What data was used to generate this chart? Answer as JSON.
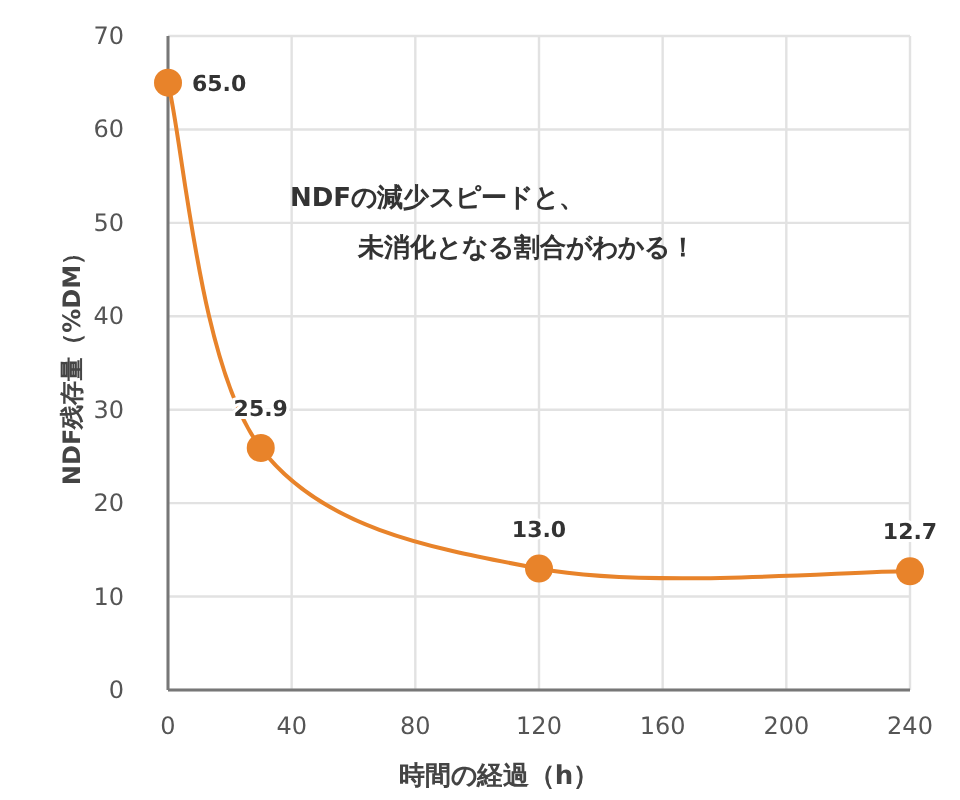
{
  "chart_data": {
    "type": "line",
    "xlabel": "時間の経過（h）",
    "ylabel": "NDF残存量（%DM）",
    "x": [
      0,
      30,
      120,
      240
    ],
    "series": [
      {
        "color": "#e8832a",
        "values": [
          65.0,
          25.9,
          13.0,
          12.7
        ],
        "value_labels": [
          "65.0",
          "25.9",
          "13.0",
          "12.7"
        ]
      }
    ],
    "xlim": [
      0,
      240
    ],
    "ylim": [
      0,
      70
    ],
    "xticks": [
      0,
      40,
      80,
      120,
      160,
      200,
      240
    ],
    "yticks": [
      0,
      10,
      20,
      30,
      40,
      50,
      60,
      70
    ],
    "grid": true,
    "marker": "circle",
    "line_style": "solid",
    "annotations": [
      "NDFの減少スピードと、",
      "未消化となる割合がわかる！"
    ]
  }
}
